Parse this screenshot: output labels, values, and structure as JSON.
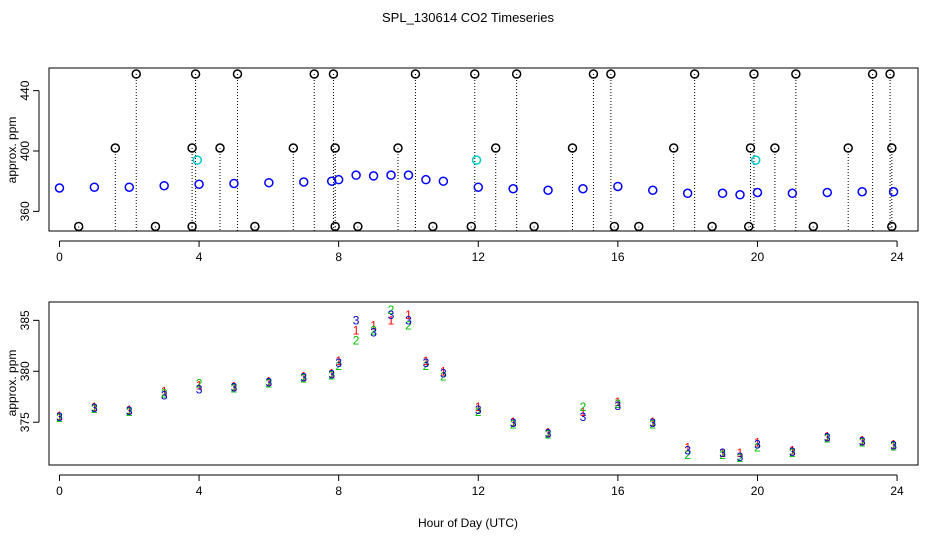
{
  "chart_data": {
    "title": "SPL_130614  CO2 Timeseries",
    "xlabel": "Hour of Day (UTC)",
    "colors": {
      "series1": "#ff0000",
      "series2": "#00c000",
      "series3": "#0000ff",
      "outlier": "#000000",
      "highlight": "#00cccc"
    },
    "panels": [
      {
        "type": "scatter",
        "ylabel": "approx. ppm",
        "xlim": [
          -0.3,
          24.6
        ],
        "ylim": [
          347,
          455
        ],
        "x_ticks": [
          0,
          4,
          8,
          12,
          16,
          20,
          24
        ],
        "y_ticks": [
          360,
          400,
          440
        ],
        "tick_labels_x": [
          "0",
          "4",
          "8",
          "12",
          "16",
          "20",
          "24"
        ],
        "tick_labels_y": [
          "360",
          "400",
          "440"
        ],
        "series": [
          {
            "name": "",
            "marker": "circle",
            "color": "#0000ff",
            "x": [
              0,
              1,
              2,
              3,
              4,
              5,
              6,
              7,
              7.8,
              8,
              8.5,
              9,
              9.5,
              10,
              10.5,
              11,
              12,
              13,
              14,
              15,
              16,
              17,
              18,
              19,
              19.5,
              20,
              21,
              22,
              23,
              23.9
            ],
            "y": [
              375.5,
              376,
              376,
              377,
              378,
              378.5,
              379,
              379.5,
              380,
              381,
              384,
              383.5,
              384,
              384,
              381,
              380,
              376,
              375,
              374,
              375,
              376.5,
              374,
              372,
              372,
              371,
              372.5,
              372,
              372.5,
              373,
              373
            ]
          },
          {
            "name": "",
            "marker": "circle",
            "color": "#000000",
            "x": [
              2.2,
              3.9,
              5.1,
              7.3,
              7.85,
              10.2,
              11.9,
              13.1,
              15.3,
              15.8,
              18.2,
              19.9,
              21.1,
              23.3,
              23.8
            ],
            "y": [
              451,
              451,
              451,
              451,
              451,
              451,
              451,
              451,
              451,
              451,
              451,
              451,
              451,
              451,
              451
            ]
          },
          {
            "name": "",
            "marker": "circle",
            "color": "#000000",
            "x": [
              1.6,
              3.8,
              4.6,
              6.7,
              7.9,
              9.7,
              12.5,
              14.7,
              17.6,
              19.8,
              20.5,
              22.6,
              23.85
            ],
            "y": [
              402,
              402,
              402,
              402,
              402,
              402,
              402,
              402,
              402,
              402,
              402,
              402,
              402
            ]
          },
          {
            "name": "",
            "marker": "circle",
            "color": "#000000",
            "x": [
              0.55,
              2.75,
              3.8,
              5.6,
              7.9,
              8.55,
              10.7,
              11.8,
              13.6,
              15.9,
              16.6,
              18.7,
              19.75,
              21.6,
              23.85
            ],
            "y": [
              350,
              350,
              350,
              350,
              350,
              350,
              350,
              350,
              350,
              350,
              350,
              350,
              350,
              350,
              350
            ]
          },
          {
            "name": "",
            "marker": "circle",
            "color": "#00cccc",
            "x": [
              3.95,
              11.95,
              19.95
            ],
            "y": [
              394,
              394,
              394
            ]
          }
        ]
      },
      {
        "type": "scatter",
        "ylabel": "approx. ppm",
        "xlim": [
          -0.3,
          24.6
        ],
        "ylim": [
          370.8,
          386.8
        ],
        "x_ticks": [
          0,
          4,
          8,
          12,
          16,
          20,
          24
        ],
        "y_ticks": [
          375,
          380,
          385
        ],
        "tick_labels_x": [
          "0",
          "4",
          "8",
          "12",
          "16",
          "20",
          "24"
        ],
        "tick_labels_y": [
          "375",
          "380",
          "385"
        ],
        "series": [
          {
            "name": "",
            "marker": "1",
            "color": "#ff0000",
            "x": [
              0,
              1,
              2,
              3,
              4,
              5,
              6,
              7,
              7.8,
              8,
              8.5,
              9,
              9.5,
              10,
              10.5,
              11,
              12,
              13,
              14,
              15,
              16,
              17,
              18,
              19,
              19.5,
              20,
              21,
              22,
              23,
              23.9
            ],
            "y": [
              375.6,
              376.5,
              376.2,
              378,
              378.6,
              378.5,
              379,
              379.5,
              379.8,
              381,
              384,
              384.5,
              385,
              385.5,
              381,
              380,
              376.5,
              375,
              374,
              376,
              377,
              375,
              372.5,
              372,
              372,
              373,
              372.2,
              373.6,
              373.2,
              372.8
            ]
          },
          {
            "name": "",
            "marker": "2",
            "color": "#00c000",
            "x": [
              0,
              1,
              2,
              3,
              4,
              5,
              6,
              7,
              7.8,
              8,
              8.5,
              9,
              9.5,
              10,
              10.5,
              11,
              12,
              13,
              14,
              15,
              16,
              17,
              18,
              19,
              19.5,
              20,
              21,
              22,
              23,
              23.9
            ],
            "y": [
              375.4,
              376.3,
              376,
              377.8,
              378.8,
              378.3,
              378.8,
              379.3,
              379.6,
              380.5,
              383,
              384,
              386,
              384.5,
              380.5,
              379.5,
              376,
              374.8,
              373.8,
              376.5,
              376.8,
              374.8,
              371.8,
              371.8,
              371.5,
              372.5,
              372,
              373.4,
              373,
              372.6
            ]
          },
          {
            "name": "",
            "marker": "3",
            "color": "#0000cc",
            "x": [
              0,
              1,
              2,
              3,
              4,
              5,
              6,
              7,
              7.8,
              8,
              8.5,
              9,
              9.5,
              10,
              10.5,
              11,
              12,
              13,
              14,
              15,
              16,
              17,
              18,
              19,
              19.5,
              20,
              21,
              22,
              23,
              23.9
            ],
            "y": [
              375.5,
              376.4,
              376.1,
              377.6,
              378.2,
              378.4,
              378.9,
              379.4,
              379.7,
              380.8,
              385,
              383.8,
              385.5,
              385,
              380.8,
              379.8,
              376.2,
              374.9,
              373.9,
              375.5,
              376.6,
              374.9,
              372.2,
              372,
              371.6,
              372.8,
              372.1,
              373.5,
              373.1,
              372.7
            ]
          }
        ]
      }
    ]
  }
}
